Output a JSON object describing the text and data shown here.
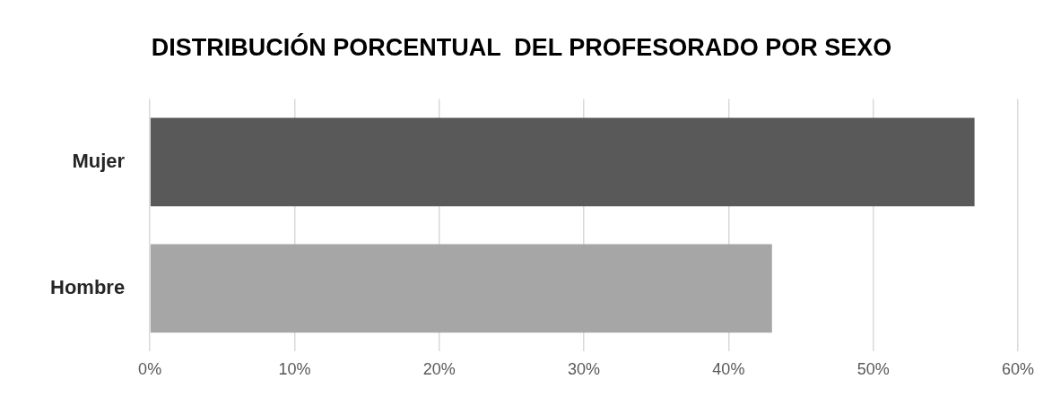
{
  "chart_data": {
    "type": "bar",
    "orientation": "horizontal",
    "title": "DISTRIBUCIÓN PORCENTUAL  DEL PROFESORADO POR SEXO",
    "categories": [
      "Mujer",
      "Hombre"
    ],
    "values": [
      57,
      43
    ],
    "colors": [
      "#595959",
      "#a6a6a6"
    ],
    "xlim": [
      0,
      60
    ],
    "xticks": [
      {
        "value": 0,
        "label": "0%"
      },
      {
        "value": 10,
        "label": "10%"
      },
      {
        "value": 20,
        "label": "20%"
      },
      {
        "value": 30,
        "label": "30%"
      },
      {
        "value": 40,
        "label": "40%"
      },
      {
        "value": 50,
        "label": "50%"
      },
      {
        "value": 60,
        "label": "60%"
      }
    ],
    "grid": "x",
    "legend": false
  }
}
